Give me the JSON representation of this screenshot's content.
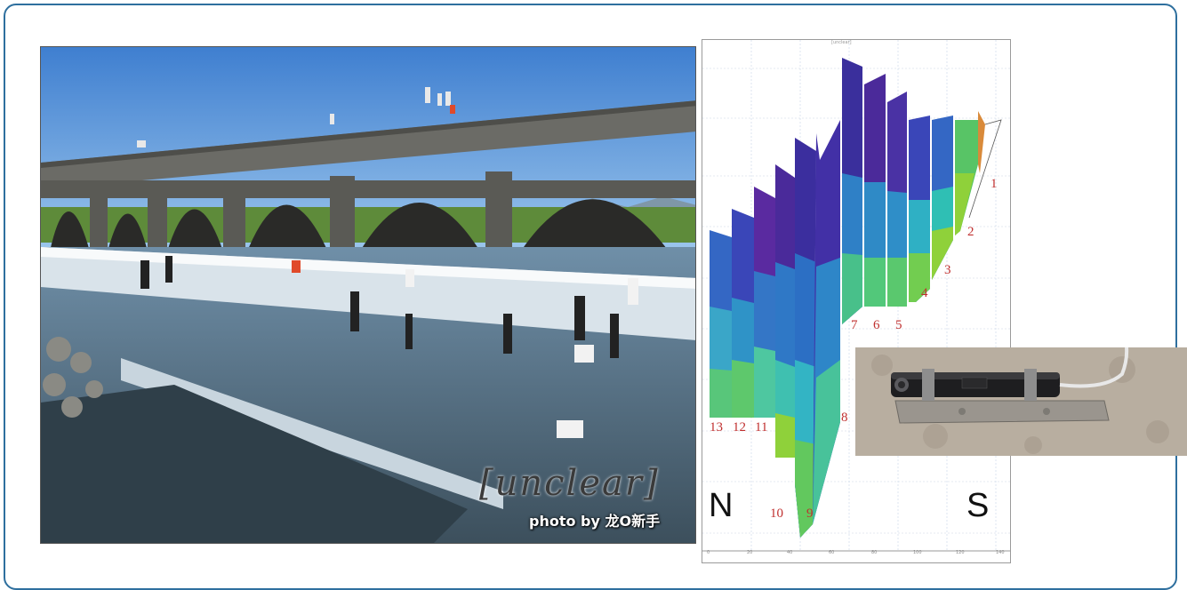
{
  "photo": {
    "watermark_title": "[unclear]",
    "credit": "photo by 龙O新手"
  },
  "chart": {
    "title": "[unclear]",
    "direction_left": "N",
    "direction_right": "S",
    "segment_labels": [
      "1",
      "2",
      "3",
      "4",
      "5",
      "6",
      "7",
      "8",
      "9",
      "10",
      "11",
      "12",
      "13"
    ],
    "x_ticks": [
      "0",
      "20",
      "40",
      "60",
      "80",
      "100",
      "120",
      "140"
    ],
    "colors": [
      "#3b3bb0",
      "#4a2a9a",
      "#2e8ec9",
      "#2fc0c0",
      "#52c872",
      "#8fd13a",
      "#d98a3a"
    ]
  }
}
